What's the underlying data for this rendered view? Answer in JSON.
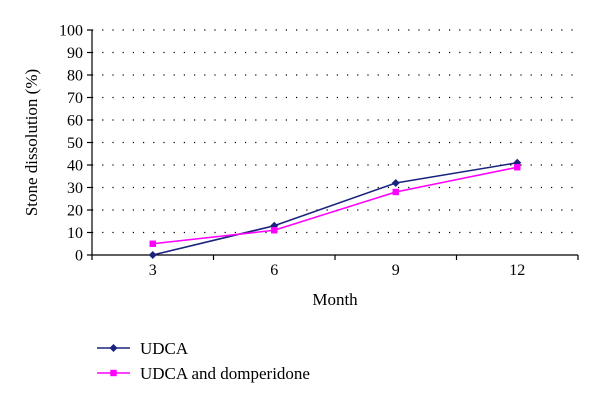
{
  "chart_data": {
    "type": "line",
    "title": "",
    "xlabel": "Month",
    "ylabel": "Stone dissolution (%)",
    "categories": [
      "3",
      "6",
      "9",
      "12"
    ],
    "ylim": [
      0,
      100
    ],
    "yticks": [
      "0",
      "10",
      "20",
      "30",
      "40",
      "50",
      "60",
      "70",
      "80",
      "90",
      "100"
    ],
    "grid": "dotted horizontal",
    "legend_position": "bottom-left",
    "series": [
      {
        "name": "UDCA",
        "values": [
          0,
          13,
          32,
          41
        ],
        "color": "#1a237e",
        "marker": "diamond"
      },
      {
        "name": "UDCA and domperidone",
        "values": [
          5,
          11,
          28,
          39
        ],
        "color": "#ff00ff",
        "marker": "square"
      }
    ]
  }
}
